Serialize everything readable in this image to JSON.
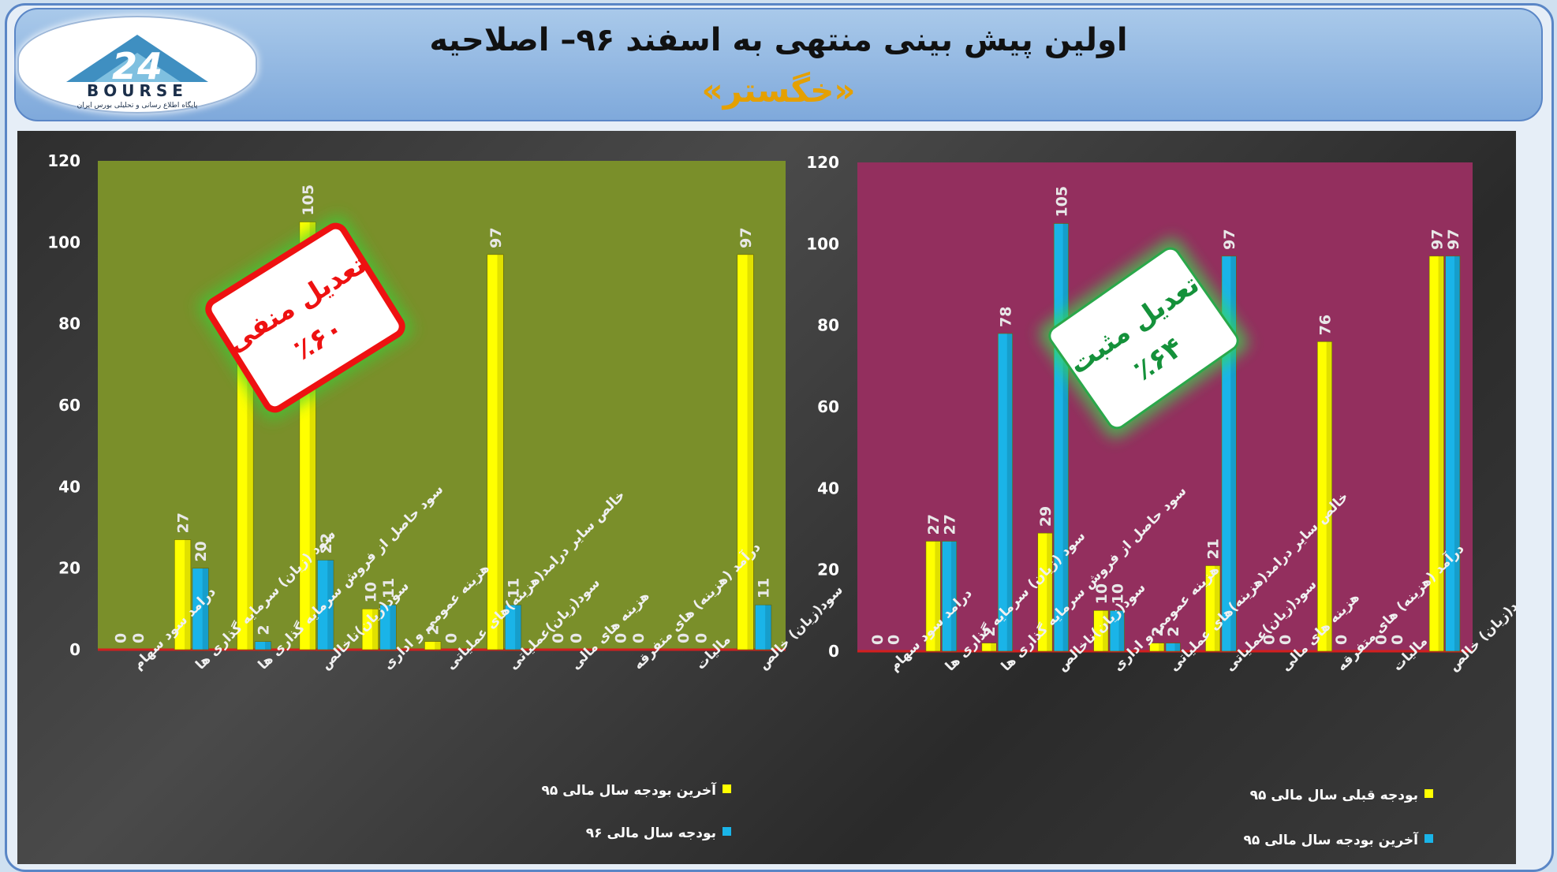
{
  "header": {
    "title": "اولین پیش بینی منتهی به اسفند ۹۶– اصلاحیه",
    "subtitle": "«خگستر»",
    "logo_text": "BOURSE",
    "logo_number": "24",
    "logo_caption": "پایگاه اطلاع رسانی و تحلیلی بورس ایران"
  },
  "colors": {
    "yellow": "#ffff00",
    "blue": "#1ab4e8",
    "left_bg": "#7a8f2a",
    "right_bg": "#932f5e"
  },
  "chart_data": [
    {
      "type": "bar",
      "categories": [
        "درامد سود سهام",
        "سود (زیان) سرمایه گذاری ها",
        "سود حاصل از فروش سرمایه گذاری ها",
        "سود(زیان)ناخالص",
        "هزینه عمومی و اداری",
        "خالص سایر درامد(هزینه)های عملیاتی",
        "سود(زیان)عملیاتی",
        "هزینه های مالی",
        "درآمد (هزینه) های متفرقه",
        "مالیات",
        "سود(زیان) خالص"
      ],
      "series": [
        {
          "name": "آخرین بودجه سال مالی ۹۵",
          "color": "yellow",
          "values": [
            0,
            27,
            78,
            105,
            10,
            2,
            97,
            0,
            0,
            0,
            97
          ]
        },
        {
          "name": "بودجه سال مالی ۹۶",
          "color": "blue",
          "values": [
            0,
            20,
            2,
            22,
            11,
            0,
            11,
            0,
            0,
            0,
            11
          ]
        }
      ],
      "ylim": [
        0,
        120
      ],
      "yticks": [
        "0",
        "20",
        "40",
        "60",
        "80",
        "100",
        "120"
      ],
      "grid": false,
      "legend": "bottom-right",
      "stamp": {
        "line1": "تعدیل منفی",
        "line2": "٪۶۰"
      }
    },
    {
      "type": "bar",
      "categories": [
        "درامد سود سهام",
        "سود (زیان) سرمایه گذاری ها",
        "سود حاصل از فروش سرمایه گذاری ها",
        "سود(زیان)ناخالص",
        "هزینه عمومی و اداری",
        "خالص سایر درامد(هزینه)های عملیاتی",
        "سود(زیان)عملیاتی",
        "هزینه های مالی",
        "درآمد (هزینه) های متفرقه",
        "مالیات",
        "سود(زیان) خالص"
      ],
      "series": [
        {
          "name": "بودجه قبلی سال مالی ۹۵",
          "color": "yellow",
          "values": [
            0,
            27,
            2,
            29,
            10,
            2,
            21,
            0,
            76,
            0,
            97
          ]
        },
        {
          "name": "آخرین بودجه سال مالی ۹۵",
          "color": "blue",
          "values": [
            0,
            27,
            78,
            105,
            10,
            2,
            97,
            0,
            0,
            0,
            97
          ]
        }
      ],
      "ylim": [
        0,
        120
      ],
      "yticks": [
        "0",
        "20",
        "40",
        "60",
        "80",
        "100",
        "120"
      ],
      "grid": false,
      "legend": "bottom-right",
      "stamp": {
        "line1": "تعدیل مثبت",
        "line2": "٪۶۴"
      }
    }
  ]
}
